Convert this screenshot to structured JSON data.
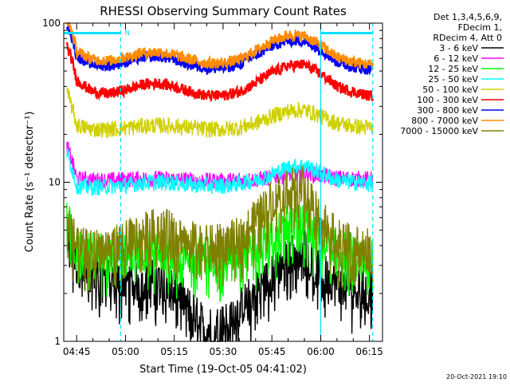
{
  "chart_data": {
    "type": "line",
    "title": "RHESSI Observing Summary Count Rates",
    "xlabel": "Start Time (19-Oct-05 04:41:02)",
    "ylabel": "Count Rate (s⁻¹ detector⁻¹)",
    "yscale": "log",
    "ylim": [
      1,
      100
    ],
    "xlim": [
      "04:41:02",
      "06:19:00"
    ],
    "x_ticks": [
      "04:45",
      "05:00",
      "05:15",
      "05:30",
      "05:45",
      "06:00",
      "06:15"
    ],
    "y_ticks": [
      "1",
      "10",
      "100"
    ],
    "legend_header": [
      "Det 1,3,4,5,6,9,",
      "FDecim 1,",
      "RDecim 4, Att 0"
    ],
    "legend_position": "right",
    "series": [
      {
        "name": "3 - 6 keV",
        "color": "#000000",
        "x": [
          "04:44",
          "04:50",
          "04:55",
          "05:00",
          "05:05",
          "05:10",
          "05:15",
          "05:20",
          "05:25",
          "05:30",
          "05:35",
          "05:40",
          "05:45",
          "05:50",
          "05:55",
          "06:00",
          "06:05",
          "06:10",
          "06:15"
        ],
        "values": [
          3.0,
          2.7,
          2.5,
          2.4,
          2.4,
          2.5,
          2.3,
          1.6,
          1.2,
          1.3,
          1.6,
          2.1,
          2.6,
          3.5,
          3.9,
          2.7,
          2.3,
          2.2,
          2.2
        ]
      },
      {
        "name": "6 - 12 keV",
        "color": "#ff00ff",
        "x": [
          "04:44",
          "04:50",
          "04:55",
          "05:00",
          "05:05",
          "05:10",
          "05:15",
          "05:20",
          "05:25",
          "05:30",
          "05:35",
          "05:40",
          "05:45",
          "05:50",
          "05:55",
          "06:00",
          "06:05",
          "06:10",
          "06:15"
        ],
        "values": [
          10.5,
          10.3,
          10.3,
          10.4,
          10.5,
          10.5,
          10.4,
          10.3,
          10.2,
          10.2,
          10.3,
          10.4,
          10.7,
          11.2,
          11.5,
          11.0,
          10.6,
          10.5,
          10.4
        ]
      },
      {
        "name": "12 - 25 keV",
        "color": "#00ff00",
        "x": [
          "04:44",
          "04:50",
          "04:55",
          "05:00",
          "05:05",
          "05:10",
          "05:15",
          "05:20",
          "05:25",
          "05:30",
          "05:35",
          "05:40",
          "05:45",
          "05:50",
          "05:55",
          "06:00",
          "06:05",
          "06:10",
          "06:15"
        ],
        "values": [
          3.7,
          3.6,
          3.6,
          3.7,
          3.7,
          3.7,
          3.6,
          3.5,
          3.5,
          3.5,
          3.7,
          4.0,
          4.5,
          5.4,
          5.7,
          4.4,
          3.8,
          3.7,
          3.6
        ]
      },
      {
        "name": "25 - 50 keV",
        "color": "#00ffff",
        "x": [
          "04:44",
          "04:50",
          "04:55",
          "05:00",
          "05:05",
          "05:10",
          "05:15",
          "05:20",
          "05:25",
          "05:30",
          "05:35",
          "05:40",
          "05:45",
          "05:50",
          "05:55",
          "06:00",
          "06:05",
          "06:10",
          "06:15"
        ],
        "values": [
          9.5,
          9.3,
          9.4,
          9.6,
          9.9,
          10.0,
          9.9,
          9.7,
          9.5,
          9.5,
          9.8,
          10.3,
          11.2,
          12.4,
          12.8,
          11.4,
          10.3,
          10.0,
          9.8
        ]
      },
      {
        "name": "50 - 100 keV",
        "color": "#d0d000",
        "x": [
          "04:44",
          "04:50",
          "04:55",
          "05:00",
          "05:05",
          "05:10",
          "05:15",
          "05:20",
          "05:25",
          "05:30",
          "05:35",
          "05:40",
          "05:45",
          "05:50",
          "05:55",
          "06:00",
          "06:05",
          "06:10",
          "06:15"
        ],
        "values": [
          23.0,
          21.5,
          21.5,
          22.0,
          22.5,
          22.8,
          22.5,
          22.0,
          21.5,
          21.5,
          22.0,
          23.5,
          26.0,
          28.0,
          28.5,
          26.0,
          23.5,
          22.5,
          22.0
        ]
      },
      {
        "name": "100 - 300 keV",
        "color": "#ff0000",
        "x": [
          "04:44",
          "04:50",
          "04:55",
          "05:00",
          "05:05",
          "05:10",
          "05:15",
          "05:20",
          "05:25",
          "05:30",
          "05:35",
          "05:40",
          "05:45",
          "05:50",
          "05:55",
          "06:00",
          "06:05",
          "06:10",
          "06:15"
        ],
        "values": [
          45,
          37,
          36,
          38,
          41,
          42,
          40,
          37,
          35,
          35,
          37,
          42,
          49,
          54,
          55,
          48,
          40,
          37,
          35
        ]
      },
      {
        "name": "300 - 800 keV",
        "color": "#0000ff",
        "x": [
          "04:44",
          "04:50",
          "04:55",
          "05:00",
          "05:05",
          "05:10",
          "05:15",
          "05:20",
          "05:25",
          "05:30",
          "05:35",
          "05:40",
          "05:45",
          "05:50",
          "05:55",
          "06:00",
          "06:05",
          "06:10",
          "06:15"
        ],
        "values": [
          63,
          55,
          54,
          57,
          61,
          62,
          59,
          55,
          52,
          52,
          55,
          63,
          72,
          78,
          77,
          68,
          57,
          53,
          51
        ]
      },
      {
        "name": "800 - 7000 keV",
        "color": "#ff8c00",
        "x": [
          "04:44",
          "04:50",
          "04:55",
          "05:00",
          "05:05",
          "05:10",
          "05:15",
          "05:20",
          "05:25",
          "05:30",
          "05:35",
          "05:40",
          "05:45",
          "05:50",
          "05:55",
          "06:00",
          "06:05",
          "06:10",
          "06:15"
        ],
        "values": [
          68,
          59,
          58,
          61,
          65,
          66,
          63,
          59,
          56,
          56,
          59,
          67,
          77,
          84,
          83,
          73,
          61,
          57,
          55
        ]
      },
      {
        "name": "7000 - 15000 keV",
        "color": "#808000",
        "x": [
          "04:44",
          "04:50",
          "04:55",
          "05:00",
          "05:05",
          "05:10",
          "05:15",
          "05:20",
          "05:25",
          "05:30",
          "05:35",
          "05:40",
          "05:45",
          "05:50",
          "05:55",
          "06:00",
          "06:05",
          "06:10",
          "06:15"
        ],
        "values": [
          3.9,
          3.8,
          4.0,
          4.3,
          4.8,
          5.2,
          4.9,
          4.3,
          4.0,
          4.1,
          4.5,
          5.8,
          7.8,
          9.5,
          9.3,
          6.2,
          4.4,
          4.0,
          3.8
        ]
      }
    ],
    "flags": [
      {
        "label": "N",
        "color": "#00e0ff",
        "start": "04:41:02",
        "end": "04:58:30"
      },
      {
        "label": "",
        "color": "#00e0ff",
        "start": "06:00:00",
        "end": "06:16:00"
      }
    ],
    "vlines_dashed": [
      "04:58:30",
      "06:16:00"
    ],
    "vlines_solid": [
      "06:00:00"
    ],
    "footer": "20-Oct-2021 19:10"
  }
}
